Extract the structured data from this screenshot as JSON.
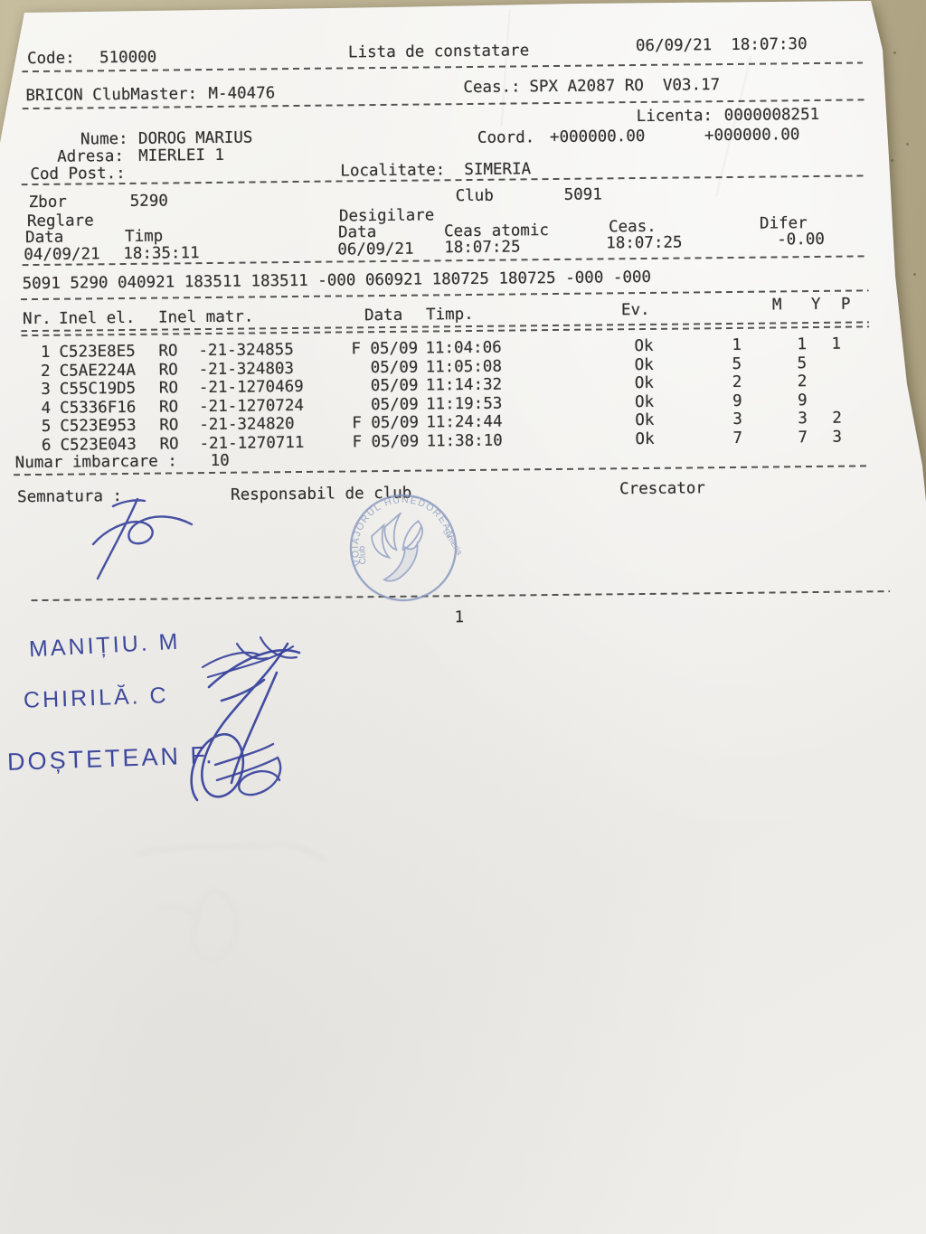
{
  "header": {
    "code_label": "Code:",
    "code_value": "510000",
    "title": "Lista de constatare",
    "datetime": "06/09/21  18:07:30"
  },
  "device": {
    "label": "BRICON ClubMaster:",
    "value": "M-40476",
    "ceas_label": "Ceas.:",
    "ceas_value": "SPX A2087 RO  V03.17"
  },
  "owner": {
    "licenta_label": "Licenta:",
    "licenta_value": "0000008251",
    "nume_label": "Nume:",
    "nume_value": "DOROG MARIUS",
    "coord_label": "Coord.",
    "coord_v1": "+000000.00",
    "coord_v2": "+000000.00",
    "adresa_label": "Adresa:",
    "adresa_value": "MIERLEI 1",
    "cod_post_label": "Cod Post.:",
    "localitate_label": "Localitate:",
    "localitate_value": "SIMERIA"
  },
  "flight": {
    "zbor_label": "Zbor",
    "zbor_value": "5290",
    "club_label": "Club",
    "club_value": "5091",
    "reglare_label": "Reglare",
    "desigilare_label": "Desigilare",
    "data_label": "Data",
    "timp_label": "Timp",
    "ceas_atomic_label": "Ceas atomic",
    "ceas_label": "Ceas.",
    "difer_label": "Difer",
    "reglare_data": "04/09/21",
    "reglare_timp": "18:35:11",
    "desigilare_data": "06/09/21",
    "ceas_atomic_value": "18:07:25",
    "ceas_value": "18:07:25",
    "difer_value": "-0.00"
  },
  "code_line": "5091 5290 040921 183511 183511 -000 060921 180725 180725 -000 -000",
  "table": {
    "headers": {
      "nr": "Nr.",
      "inel_el": "Inel el.",
      "inel_matr": "Inel matr.",
      "data": "Data",
      "timp": "Timp.",
      "ev": "Ev.",
      "m": "M",
      "y": "Y",
      "p": "P"
    },
    "rows": [
      {
        "nr": "1",
        "inel_el": "C523E8E5",
        "tara": "RO",
        "inel_matr": "-21-324855",
        "f": "F",
        "data": "05/09",
        "timp": "11:04:06",
        "ev": "Ok",
        "m": "1",
        "y": "1",
        "p": "1"
      },
      {
        "nr": "2",
        "inel_el": "C5AE224A",
        "tara": "RO",
        "inel_matr": "-21-324803",
        "f": "",
        "data": "05/09",
        "timp": "11:05:08",
        "ev": "Ok",
        "m": "5",
        "y": "5",
        "p": ""
      },
      {
        "nr": "3",
        "inel_el": "C55C19D5",
        "tara": "RO",
        "inel_matr": "-21-1270469",
        "f": "",
        "data": "05/09",
        "timp": "11:14:32",
        "ev": "Ok",
        "m": "2",
        "y": "2",
        "p": ""
      },
      {
        "nr": "4",
        "inel_el": "C5336F16",
        "tara": "RO",
        "inel_matr": "-21-1270724",
        "f": "",
        "data": "05/09",
        "timp": "11:19:53",
        "ev": "Ok",
        "m": "9",
        "y": "9",
        "p": ""
      },
      {
        "nr": "5",
        "inel_el": "C523E953",
        "tara": "RO",
        "inel_matr": "-21-324820",
        "f": "F",
        "data": "05/09",
        "timp": "11:24:44",
        "ev": "Ok",
        "m": "3",
        "y": "3",
        "p": "2"
      },
      {
        "nr": "6",
        "inel_el": "C523E043",
        "tara": "RO",
        "inel_matr": "-21-1270711",
        "f": "F",
        "data": "05/09",
        "timp": "11:38:10",
        "ev": "Ok",
        "m": "7",
        "y": "7",
        "p": "3"
      }
    ]
  },
  "numar": {
    "label": "Numar imbarcare :",
    "value": "10"
  },
  "footer": {
    "semnatura": "Semnatura :",
    "responsabil": "Responsabil de club",
    "crescator": "Crescator"
  },
  "page_number": "1",
  "stamp": {
    "text_top": "VOIAJORUL HUNEDOREAN",
    "text_left": "Club",
    "text_right": "Simeria",
    "color": "#8494bd"
  },
  "handwriting": {
    "ink_color": "#2f3b97",
    "names": [
      "MANIȚIU. M",
      "CHIRILĂ. C",
      "DOȘTETEAN F."
    ]
  }
}
